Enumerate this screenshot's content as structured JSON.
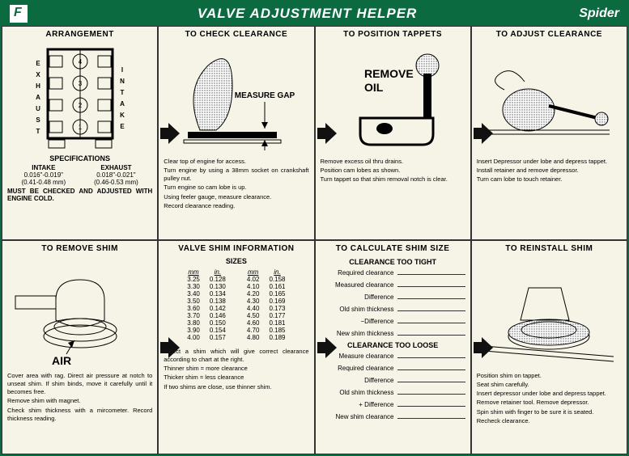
{
  "header": {
    "title": "VALVE ADJUSTMENT HELPER",
    "model": "Spider"
  },
  "cells": {
    "arrangement": {
      "title": "ARRANGEMENT",
      "spec_title": "SPECIFICATIONS",
      "intake_label": "INTAKE",
      "exhaust_label": "EXHAUST",
      "intake_in": "0.016\"-0.019\"",
      "intake_mm": "(0.41-0.48 mm)",
      "exhaust_in": "0.018\"-0.021\"",
      "exhaust_mm": "(0.46-0.53 mm)",
      "note": "MUST BE CHECKED AND ADJUSTED WITH ENGINE COLD.",
      "side_ex": "EXHAUST",
      "side_in": "INTAKE"
    },
    "check": {
      "title": "TO CHECK CLEARANCE",
      "measure": "MEASURE GAP",
      "p1": "Clear top of engine for access.",
      "p2": "Turn engine by using a 38mm socket on crankshaft pulley nut.",
      "p3": "Turn engine so cam lobe is up.",
      "p4": "Using feeler gauge, measure clearance.",
      "p5": "Record clearance reading."
    },
    "position": {
      "title": "TO POSITION TAPPETS",
      "remove": "REMOVE OIL",
      "p1": "Remove excess oil thru drains.",
      "p2": "Position cam lobes as shown.",
      "p3": "Turn tappet so that shim removal notch is clear."
    },
    "adjust": {
      "title": "TO ADJUST CLEARANCE",
      "p1": "Insert Depressor under lobe and depress tappet.",
      "p2": "Install retainer and remove depressor.",
      "p3": "Turn cam lobe to touch retainer."
    },
    "remove": {
      "title": "TO REMOVE SHIM",
      "air": "AIR",
      "p1": "Cover area with rag. Direct air pressure at notch to unseat shim. If shim binds, move it carefully until it becomes free.",
      "p2": "Remove shim with magnet.",
      "p3": "Check shim thickness with a mircometer. Record thickness reading."
    },
    "shiminfo": {
      "title": "VALVE SHIM INFORMATION",
      "sizes": "SIZES",
      "h_mm": "mm",
      "h_in": "in.",
      "rows_a": [
        [
          "3.25",
          "0.128"
        ],
        [
          "3.30",
          "0.130"
        ],
        [
          "3.40",
          "0.134"
        ],
        [
          "3.50",
          "0.138"
        ],
        [
          "3.60",
          "0.142"
        ],
        [
          "3.70",
          "0.146"
        ],
        [
          "3.80",
          "0.150"
        ],
        [
          "3.90",
          "0.154"
        ],
        [
          "4.00",
          "0.157"
        ]
      ],
      "rows_b": [
        [
          "4.02",
          "0.158"
        ],
        [
          "4.10",
          "0.161"
        ],
        [
          "4.20",
          "0.165"
        ],
        [
          "4.30",
          "0.169"
        ],
        [
          "4.40",
          "0.173"
        ],
        [
          "4.50",
          "0.177"
        ],
        [
          "4.60",
          "0.181"
        ],
        [
          "4.70",
          "0.185"
        ],
        [
          "4.80",
          "0.189"
        ]
      ],
      "p1": "Select a shim which will give correct clearance according to chart at the right.",
      "p2": "Thinner shim = more clearance",
      "p3": "Thicker shim = less clearance",
      "p4": "If two shims are close, use thinner shim."
    },
    "calc": {
      "title": "TO CALCULATE SHIM SIZE",
      "tight": "CLEARANCE TOO TIGHT",
      "loose": "CLEARANCE TOO LOOSE",
      "required": "Required clearance",
      "measured": "Measured clearance",
      "diff": "Difference",
      "mdiff": "−Difference",
      "pdiff": "+ Difference",
      "old": "Old shim thickness",
      "newthk": "New shim thickness",
      "measure": "Measure clearance",
      "newclr": "New shim clearance"
    },
    "reinstall": {
      "title": "TO REINSTALL SHIM",
      "p1": "Position shim on tappet.",
      "p2": "Seat shim carefully.",
      "p3": "Insert depressor under lobe and depress tappet.",
      "p4": "Remove retainer tool. Remove depressor.",
      "p5": "Spin shim with finger to be sure it is seated.",
      "p6": "Recheck clearance."
    }
  }
}
